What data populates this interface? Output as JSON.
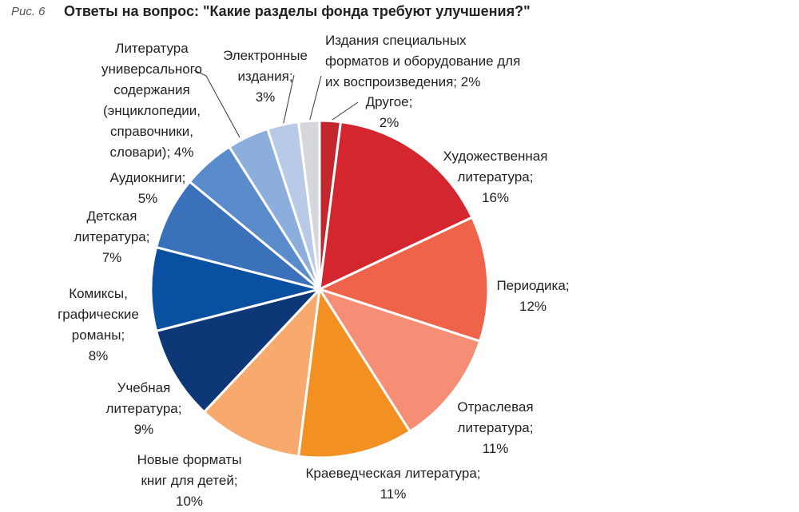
{
  "chart_data": {
    "type": "pie",
    "figure_label": "Рис. 6",
    "title": "Ответы на вопрос: \"Какие разделы фонда требуют улучшения?\"",
    "categories": [
      "Другое;",
      "Художественная литература;",
      "Периодика;",
      "Отраслевая литература;",
      "Краеведческая литература;",
      "Новые форматы книг для детей;",
      "Учебная литература;",
      "Комиксы, графические романы;",
      "Детская литература;",
      "Аудиокниги;",
      "Литература универсального содержания (энциклопедии, справочники, словари);",
      "Электронные издания;",
      "Издания специальных форматов и оборудование для их воспроизведения;"
    ],
    "values": [
      2,
      16,
      12,
      11,
      11,
      10,
      9,
      8,
      7,
      5,
      4,
      3,
      2
    ],
    "value_labels": [
      "2%",
      "16%",
      "12%",
      "11%",
      "11%",
      "10%",
      "9%",
      "8%",
      "7%",
      "5%",
      "4%",
      "3%",
      "2%"
    ],
    "colors": [
      "#c1272d",
      "#d3262f",
      "#ef634a",
      "#f58e74",
      "#f39022",
      "#f8a96e",
      "#0d3777",
      "#0a50a1",
      "#3a71ba",
      "#5a8ccb",
      "#8caedd",
      "#b9cae9",
      "#d4d7dc"
    ]
  }
}
